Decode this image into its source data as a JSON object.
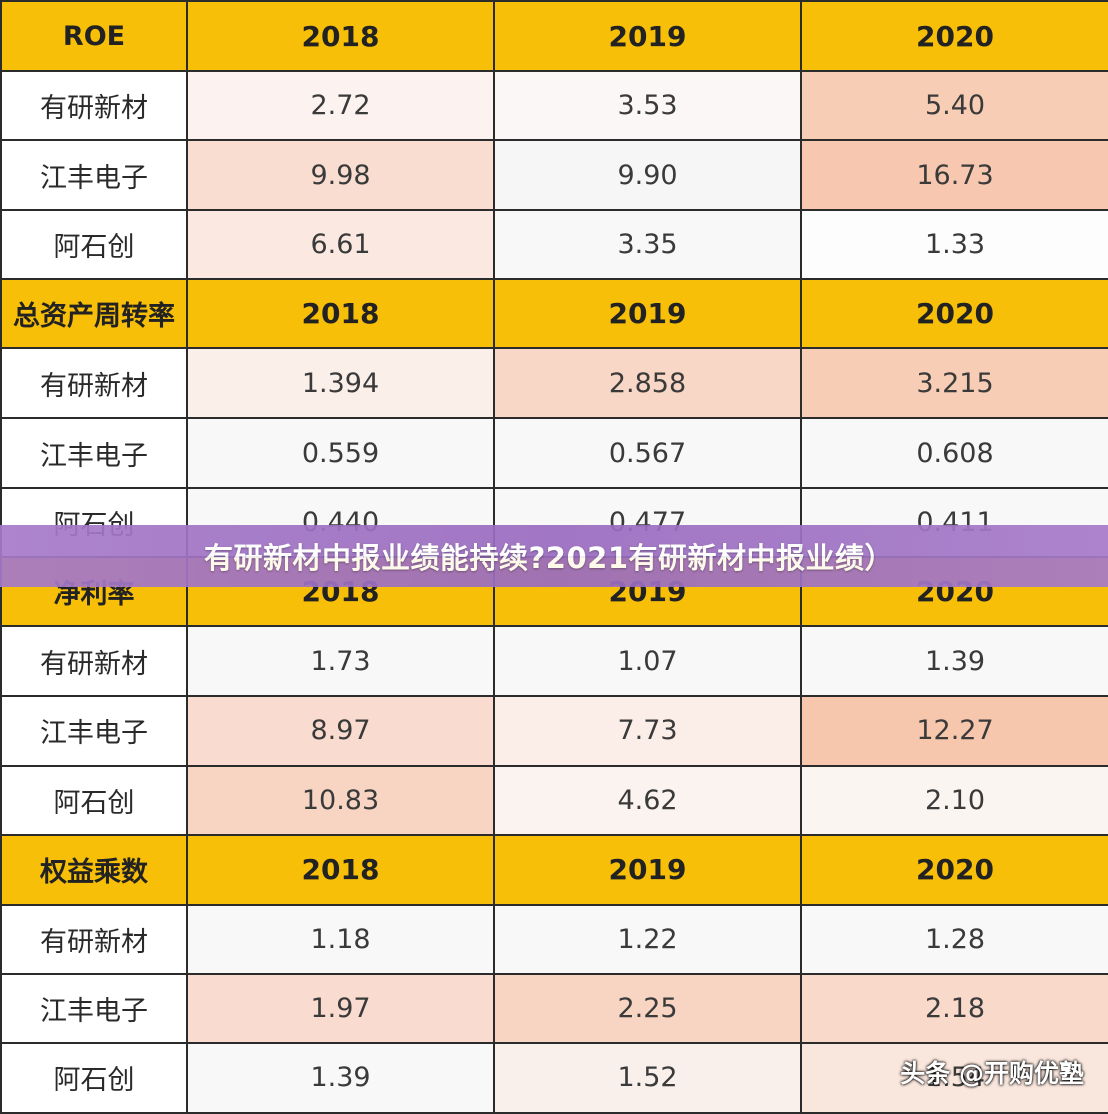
{
  "colors": {
    "header": "#f7bf07",
    "banner": "#a679c9",
    "border": "#2b2b2b"
  },
  "sections": [
    {
      "label": "ROE",
      "years": [
        "2018",
        "2019",
        "2020"
      ],
      "rows": [
        {
          "name": "有研新材",
          "values": [
            "2.72",
            "3.53",
            "5.40"
          ],
          "shades": [
            "#fcf3f0",
            "#faf7f6",
            "#f8cdb5"
          ]
        },
        {
          "name": "江丰电子",
          "values": [
            "9.98",
            "9.90",
            "16.73"
          ],
          "shades": [
            "#f9ddd0",
            "#f6f6f6",
            "#f7c8af"
          ]
        },
        {
          "name": "阿石创",
          "values": [
            "6.61",
            "3.35",
            "1.33"
          ],
          "shades": [
            "#fbe9e1",
            "#f8f8f8",
            "#fdfdfd"
          ]
        }
      ]
    },
    {
      "label": "总资产周转率",
      "years": [
        "2018",
        "2019",
        "2020"
      ],
      "rows": [
        {
          "name": "有研新材",
          "values": [
            "1.394",
            "2.858",
            "3.215"
          ],
          "shades": [
            "#fbefea",
            "#f8d7c6",
            "#f7cdb5"
          ]
        },
        {
          "name": "江丰电子",
          "values": [
            "0.559",
            "0.567",
            "0.608"
          ],
          "shades": [
            "#f8f8f8",
            "#f8f8f8",
            "#f8f8f8"
          ]
        },
        {
          "name": "阿石创",
          "values": [
            "0.440",
            "0.477",
            "0.411"
          ],
          "shades": [
            "#f8f8f8",
            "#f8f8f8",
            "#f8f8f8"
          ]
        }
      ]
    },
    {
      "label": "净利率",
      "years": [
        "2018",
        "2019",
        "2020"
      ],
      "rows": [
        {
          "name": "有研新材",
          "values": [
            "1.73",
            "1.07",
            "1.39"
          ],
          "shades": [
            "#f8f8f8",
            "#f8f8f8",
            "#f8f8f8"
          ]
        },
        {
          "name": "江丰电子",
          "values": [
            "8.97",
            "7.73",
            "12.27"
          ],
          "shades": [
            "#f9dccf",
            "#fbeee8",
            "#f7c7ad"
          ]
        },
        {
          "name": "阿石创",
          "values": [
            "10.83",
            "4.62",
            "2.10"
          ],
          "shades": [
            "#f8d5c3",
            "#fbf3ef",
            "#fbf5f2"
          ]
        }
      ]
    },
    {
      "label": "权益乘数",
      "years": [
        "2018",
        "2019",
        "2020"
      ],
      "rows": [
        {
          "name": "有研新材",
          "values": [
            "1.18",
            "1.22",
            "1.28"
          ],
          "shades": [
            "#f8f8f8",
            "#f8f8f8",
            "#f8f8f8"
          ]
        },
        {
          "name": "江丰电子",
          "values": [
            "1.97",
            "2.25",
            "2.18"
          ],
          "shades": [
            "#f9dccf",
            "#f8d4c2",
            "#f8d9ca"
          ]
        },
        {
          "name": "阿石创",
          "values": [
            "1.39",
            "1.52",
            "1.54"
          ],
          "shades": [
            "#f8f8f8",
            "#faf0eb",
            "#f9e6dc"
          ]
        }
      ]
    }
  ],
  "banner_text": "有研新材中报业绩能持续?2021有研新材中报业绩）",
  "watermark": "头条 @开购优塾"
}
